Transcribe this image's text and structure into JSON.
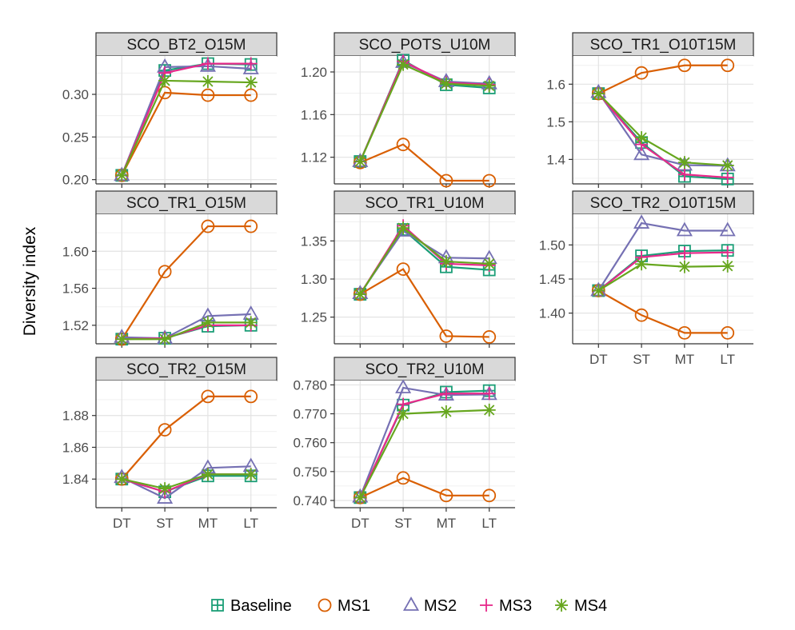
{
  "chart_data": {
    "type": "line",
    "ylabel": "Diversity index",
    "xlabel": "",
    "categories": [
      "DT",
      "ST",
      "MT",
      "LT"
    ],
    "legend_position": "bottom",
    "grid": true,
    "series_styles": [
      {
        "name": "Baseline",
        "color": "#1b9e77",
        "marker": "square-plus"
      },
      {
        "name": "MS1",
        "color": "#d95f02",
        "marker": "circle"
      },
      {
        "name": "MS2",
        "color": "#7570b3",
        "marker": "triangle"
      },
      {
        "name": "MS3",
        "color": "#e7298a",
        "marker": "plus"
      },
      {
        "name": "MS4",
        "color": "#66a61e",
        "marker": "asterisk"
      }
    ],
    "panels": [
      {
        "title": "SCO_BT2_O15M",
        "ylim": [
          0.195,
          0.345
        ],
        "yticks": [
          0.2,
          0.25,
          0.3
        ],
        "ytick_labels": [
          "0.20",
          "0.25",
          "0.30"
        ],
        "series": [
          {
            "name": "Baseline",
            "values": [
              0.205,
              0.328,
              0.336,
              0.335
            ]
          },
          {
            "name": "MS1",
            "values": [
              0.205,
              0.302,
              0.299,
              0.299
            ]
          },
          {
            "name": "MS2",
            "values": [
              0.205,
              0.332,
              0.333,
              0.33
            ]
          },
          {
            "name": "MS3",
            "values": [
              0.205,
              0.325,
              0.336,
              0.336
            ]
          },
          {
            "name": "MS4",
            "values": [
              0.205,
              0.316,
              0.315,
              0.314
            ]
          }
        ]
      },
      {
        "title": "SCO_POTS_U10M",
        "ylim": [
          1.095,
          1.215
        ],
        "yticks": [
          1.12,
          1.16,
          1.2
        ],
        "ytick_labels": [
          "1.12",
          "1.16",
          "1.20"
        ],
        "series": [
          {
            "name": "Baseline",
            "values": [
              1.116,
              1.211,
              1.188,
              1.185
            ]
          },
          {
            "name": "MS1",
            "values": [
              1.115,
              1.132,
              1.098,
              1.098
            ]
          },
          {
            "name": "MS2",
            "values": [
              1.116,
              1.209,
              1.191,
              1.189
            ]
          },
          {
            "name": "MS3",
            "values": [
              1.116,
              1.21,
              1.19,
              1.188
            ]
          },
          {
            "name": "MS4",
            "values": [
              1.116,
              1.207,
              1.189,
              1.187
            ]
          }
        ]
      },
      {
        "title": "SCO_TR1_O10T15M",
        "ylim": [
          1.335,
          1.675
        ],
        "yticks": [
          1.4,
          1.5,
          1.6
        ],
        "ytick_labels": [
          "1.4",
          "1.5",
          "1.6"
        ],
        "series": [
          {
            "name": "Baseline",
            "values": [
              1.575,
              1.445,
              1.355,
              1.348
            ]
          },
          {
            "name": "MS1",
            "values": [
              1.575,
              1.63,
              1.65,
              1.65
            ]
          },
          {
            "name": "MS2",
            "values": [
              1.578,
              1.413,
              1.385,
              1.383
            ]
          },
          {
            "name": "MS3",
            "values": [
              1.575,
              1.44,
              1.36,
              1.352
            ]
          },
          {
            "name": "MS4",
            "values": [
              1.575,
              1.458,
              1.392,
              1.384
            ]
          }
        ]
      },
      {
        "title": "SCO_TR1_O15M",
        "ylim": [
          1.5,
          1.64
        ],
        "yticks": [
          1.52,
          1.56,
          1.6
        ],
        "ytick_labels": [
          "1.52",
          "1.56",
          "1.60"
        ],
        "series": [
          {
            "name": "Baseline",
            "values": [
              1.505,
              1.506,
              1.519,
              1.52
            ]
          },
          {
            "name": "MS1",
            "values": [
              1.505,
              1.578,
              1.627,
              1.627
            ]
          },
          {
            "name": "MS2",
            "values": [
              1.507,
              1.506,
              1.53,
              1.532
            ]
          },
          {
            "name": "MS3",
            "values": [
              1.505,
              1.506,
              1.52,
              1.52
            ]
          },
          {
            "name": "MS4",
            "values": [
              1.505,
              1.505,
              1.523,
              1.523
            ]
          }
        ]
      },
      {
        "title": "SCO_TR1_U10M",
        "ylim": [
          1.215,
          1.385
        ],
        "yticks": [
          1.25,
          1.3,
          1.35
        ],
        "ytick_labels": [
          "1.25",
          "1.30",
          "1.35"
        ],
        "series": [
          {
            "name": "Baseline",
            "values": [
              1.28,
              1.365,
              1.316,
              1.312
            ]
          },
          {
            "name": "MS1",
            "values": [
              1.28,
              1.313,
              1.225,
              1.224
            ]
          },
          {
            "name": "MS2",
            "values": [
              1.281,
              1.363,
              1.328,
              1.327
            ]
          },
          {
            "name": "MS3",
            "values": [
              1.28,
              1.37,
              1.32,
              1.318
            ]
          },
          {
            "name": "MS4",
            "values": [
              1.28,
              1.367,
              1.323,
              1.32
            ]
          }
        ]
      },
      {
        "title": "SCO_TR2_O10T15M",
        "ylim": [
          1.355,
          1.545
        ],
        "yticks": [
          1.4,
          1.45,
          1.5
        ],
        "ytick_labels": [
          "1.40",
          "1.45",
          "1.50"
        ],
        "series": [
          {
            "name": "Baseline",
            "values": [
              1.433,
              1.484,
              1.491,
              1.492
            ]
          },
          {
            "name": "MS1",
            "values": [
              1.433,
              1.397,
              1.371,
              1.371
            ]
          },
          {
            "name": "MS2",
            "values": [
              1.433,
              1.532,
              1.521,
              1.521
            ]
          },
          {
            "name": "MS3",
            "values": [
              1.433,
              1.482,
              1.488,
              1.489
            ]
          },
          {
            "name": "MS4",
            "values": [
              1.433,
              1.472,
              1.468,
              1.469
            ]
          }
        ]
      },
      {
        "title": "SCO_TR2_O15M",
        "ylim": [
          1.822,
          1.902
        ],
        "yticks": [
          1.84,
          1.86,
          1.88
        ],
        "ytick_labels": [
          "1.84",
          "1.86",
          "1.88"
        ],
        "series": [
          {
            "name": "Baseline",
            "values": [
              1.84,
              1.832,
              1.842,
              1.842
            ]
          },
          {
            "name": "MS1",
            "values": [
              1.84,
              1.871,
              1.892,
              1.892
            ]
          },
          {
            "name": "MS2",
            "values": [
              1.841,
              1.828,
              1.847,
              1.848
            ]
          },
          {
            "name": "MS3",
            "values": [
              1.84,
              1.832,
              1.843,
              1.843
            ]
          },
          {
            "name": "MS4",
            "values": [
              1.84,
              1.834,
              1.843,
              1.843
            ]
          }
        ]
      },
      {
        "title": "SCO_TR2_U10M",
        "ylim": [
          0.7375,
          0.7815
        ],
        "yticks": [
          0.74,
          0.75,
          0.76,
          0.77,
          0.78
        ],
        "ytick_labels": [
          "0.740",
          "0.750",
          "0.760",
          "0.770",
          "0.780"
        ],
        "series": [
          {
            "name": "Baseline",
            "values": [
              0.741,
              0.773,
              0.7775,
              0.778
            ]
          },
          {
            "name": "MS1",
            "values": [
              0.741,
              0.7478,
              0.7417,
              0.7417
            ]
          },
          {
            "name": "MS2",
            "values": [
              0.7412,
              0.779,
              0.7765,
              0.7767
            ]
          },
          {
            "name": "MS3",
            "values": [
              0.741,
              0.7733,
              0.777,
              0.777
            ]
          },
          {
            "name": "MS4",
            "values": [
              0.741,
              0.77,
              0.7707,
              0.7713
            ]
          }
        ]
      }
    ]
  }
}
